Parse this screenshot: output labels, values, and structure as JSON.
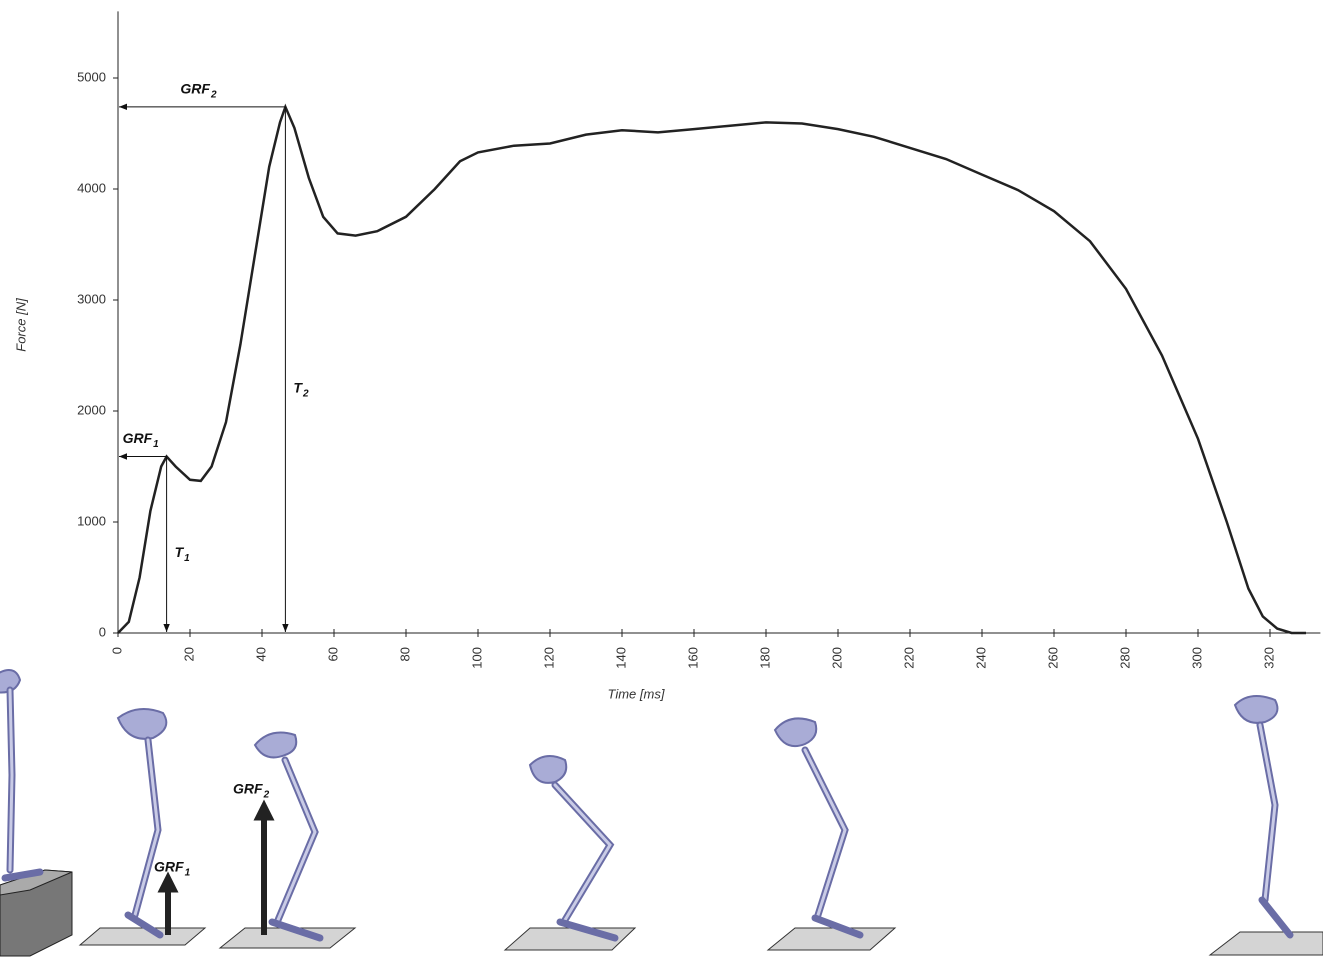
{
  "chart_data": {
    "type": "line",
    "xlabel": "Time [ms]",
    "ylabel": "Force [N]",
    "x": [
      0,
      3,
      6,
      9,
      12,
      13.5,
      16,
      20,
      23,
      26,
      30,
      34,
      38,
      42,
      45,
      46.5,
      49,
      53,
      57,
      61,
      66,
      72,
      80,
      88,
      95,
      100,
      110,
      120,
      130,
      140,
      150,
      160,
      170,
      180,
      190,
      200,
      210,
      220,
      230,
      240,
      250,
      260,
      270,
      280,
      290,
      300,
      308,
      314,
      318,
      322,
      326,
      330
    ],
    "series": [
      {
        "color": "#222222",
        "values": [
          0,
          100,
          500,
          1100,
          1500,
          1590,
          1500,
          1380,
          1370,
          1500,
          1900,
          2600,
          3400,
          4200,
          4600,
          4740,
          4550,
          4100,
          3750,
          3600,
          3580,
          3620,
          3750,
          4000,
          4250,
          4330,
          4390,
          4410,
          4490,
          4530,
          4510,
          4540,
          4570,
          4600,
          4590,
          4540,
          4470,
          4370,
          4270,
          4130,
          3990,
          3800,
          3530,
          3100,
          2500,
          1750,
          1000,
          400,
          150,
          40,
          0,
          0
        ]
      }
    ],
    "xlim": [
      0,
      334
    ],
    "ylim": [
      0,
      5600
    ],
    "xticks": [
      0,
      20,
      40,
      60,
      80,
      100,
      120,
      140,
      160,
      180,
      200,
      220,
      240,
      260,
      280,
      300,
      320
    ],
    "yticks": [
      0,
      1000,
      2000,
      3000,
      4000,
      5000
    ],
    "annotations": [
      {
        "text": "GRF",
        "sub": "1",
        "x": 13.5,
        "y": 1590
      },
      {
        "text": "GRF",
        "sub": "2",
        "x": 46.5,
        "y": 4740
      },
      {
        "text": "T",
        "sub": "1",
        "x": 13.5,
        "y": 1590
      },
      {
        "text": "T",
        "sub": "2",
        "x": 46.5,
        "y": 4740
      }
    ]
  },
  "figure_labels": [
    {
      "text": "GRF",
      "sub": "1"
    },
    {
      "text": "GRF",
      "sub": "2"
    }
  ]
}
